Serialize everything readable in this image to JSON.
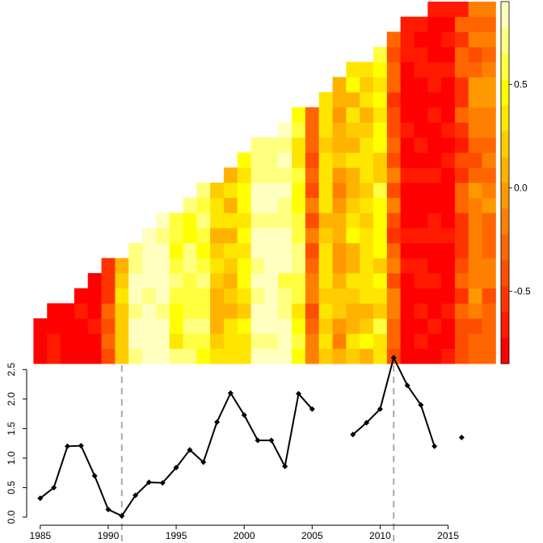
{
  "chart_data": [
    {
      "type": "heatmap",
      "layout": "lower-triangular",
      "colormap": "heat",
      "colorbar": {
        "ticks": [
          0.5,
          0.0,
          -0.5
        ],
        "tick_labels": [
          "0.5",
          "0.0",
          "-0.5"
        ],
        "range": [
          -0.85,
          0.9
        ],
        "colors": [
          "#FF0000",
          "#FF1A00",
          "#FF3300",
          "#FF4D00",
          "#FF6600",
          "#FF8000",
          "#FF9900",
          "#FFB300",
          "#FFCC00",
          "#FFE600",
          "#FFFF00",
          "#FFFF40",
          "#FFFF80",
          "#FFFFBF"
        ]
      },
      "year_start": 1985,
      "year_end": 2018,
      "row_count": 24,
      "description_values": "Correlation between a running series and each year column; strongly negative around 1985-1989 and 2011-2015, positive 1992-2004"
    },
    {
      "type": "line",
      "x": [
        1985,
        1986,
        1987,
        1988,
        1989,
        1990,
        1991,
        1992,
        1993,
        1994,
        1995,
        1996,
        1997,
        1998,
        1999,
        2000,
        2001,
        2002,
        2003,
        2004,
        2005,
        2006,
        2007,
        2008,
        2009,
        2010,
        2011,
        2012,
        2013,
        2014,
        2015,
        2016
      ],
      "y": [
        0.32,
        0.5,
        1.2,
        1.21,
        0.7,
        0.13,
        0.02,
        0.37,
        0.59,
        0.58,
        0.84,
        1.14,
        0.93,
        1.61,
        2.1,
        1.73,
        1.3,
        1.3,
        0.86,
        2.09,
        1.83,
        null,
        null,
        1.4,
        1.6,
        1.83,
        2.7,
        2.23,
        1.9,
        1.2,
        null,
        1.35
      ],
      "x_ticks": [
        1985,
        1990,
        1995,
        2000,
        2005,
        2010,
        2015
      ],
      "x_tick_labels": [
        "1985",
        "1990",
        "1995",
        "2000",
        "2005",
        "2010",
        "2015"
      ],
      "y_ticks": [
        0,
        0.5,
        1,
        1.5,
        2,
        2.5
      ],
      "y_tick_labels": [
        "0.0",
        "0.5",
        "1.0",
        "1.5",
        "2.0",
        "2.5"
      ],
      "ylim": [
        0,
        2.6
      ],
      "xlim": [
        1984,
        2018
      ],
      "vlines": [
        1991,
        2011
      ],
      "title": "",
      "xlabel": "",
      "ylabel": ""
    }
  ]
}
